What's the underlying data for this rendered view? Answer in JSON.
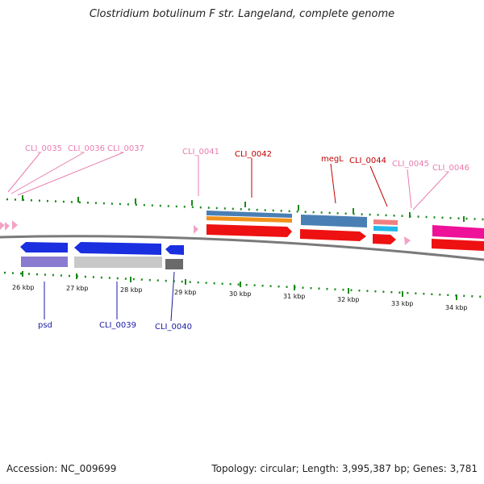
{
  "title": "Clostridium botulinum F str. Langeland, complete genome",
  "footer": {
    "accession": "Accession: NC_009699",
    "topology": "Topology: circular; Length: 3,995,387 bp; Genes: 3,781"
  },
  "ticks": [
    "26 kbp",
    "27 kbp",
    "28 kbp",
    "29 kbp",
    "30 kbp",
    "31 kbp",
    "32 kbp",
    "33 kbp",
    "34 kbp"
  ],
  "gene_labels_top": [
    "CLI_0035",
    "CLI_0036",
    "CLI_0037",
    "CLI_0041",
    "CLI_0042",
    "megL",
    "CLI_0044",
    "CLI_0045",
    "CLI_0046"
  ],
  "gene_labels_bottom": [
    "psd",
    "CLI_0039",
    "CLI_0040"
  ],
  "colors": {
    "pink_label": "#e87bb0",
    "red_label": "#c00000",
    "blue_label": "#1a1aa8",
    "tick_green": "#1a8a1a",
    "red_gene": "#ee1111",
    "blue_gene": "#1a2fe0",
    "steel_gene": "#4a7fb5",
    "orange_gene": "#f0921a",
    "magenta_gene": "#ee1199",
    "lavender_gene": "#8a7ad0",
    "grey_gene": "#c8c8c8",
    "dark_grey_gene": "#6a6a6a",
    "cyan_gene": "#22b8e8",
    "salmon_gene": "#f08080",
    "backbone": "#7a7a7a"
  }
}
